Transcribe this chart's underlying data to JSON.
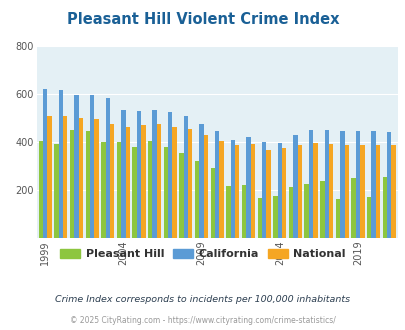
{
  "title": "Pleasant Hill Violent Crime Index",
  "years": [
    1999,
    2000,
    2001,
    2002,
    2003,
    2004,
    2005,
    2006,
    2007,
    2008,
    2009,
    2010,
    2011,
    2012,
    2013,
    2014,
    2015,
    2016,
    2017,
    2018,
    2019,
    2020,
    2021
  ],
  "pleasant_hill": [
    405,
    390,
    450,
    445,
    400,
    400,
    380,
    405,
    380,
    355,
    320,
    290,
    215,
    220,
    165,
    175,
    210,
    225,
    235,
    160,
    250,
    170,
    255
  ],
  "california": [
    622,
    618,
    595,
    598,
    585,
    533,
    528,
    533,
    527,
    507,
    475,
    445,
    410,
    420,
    400,
    395,
    428,
    450,
    450,
    445,
    445,
    445,
    440
  ],
  "national": [
    507,
    507,
    500,
    494,
    473,
    463,
    469,
    474,
    464,
    454,
    430,
    404,
    387,
    390,
    368,
    375,
    385,
    395,
    393,
    385,
    385,
    388,
    387
  ],
  "pleasant_hill_color": "#8dc63f",
  "california_color": "#5b9bd5",
  "national_color": "#f5a623",
  "bg_color": "#e4f0f5",
  "ylim": [
    0,
    800
  ],
  "yticks": [
    200,
    400,
    600,
    800
  ],
  "xlabel_ticks": [
    1999,
    2004,
    2009,
    2014,
    2019
  ],
  "subtitle": "Crime Index corresponds to incidents per 100,000 inhabitants",
  "footer": "© 2025 CityRating.com - https://www.cityrating.com/crime-statistics/",
  "legend_labels": [
    "Pleasant Hill",
    "California",
    "National"
  ],
  "title_color": "#1a6096",
  "subtitle_color": "#2c3e50",
  "footer_color": "#999999"
}
